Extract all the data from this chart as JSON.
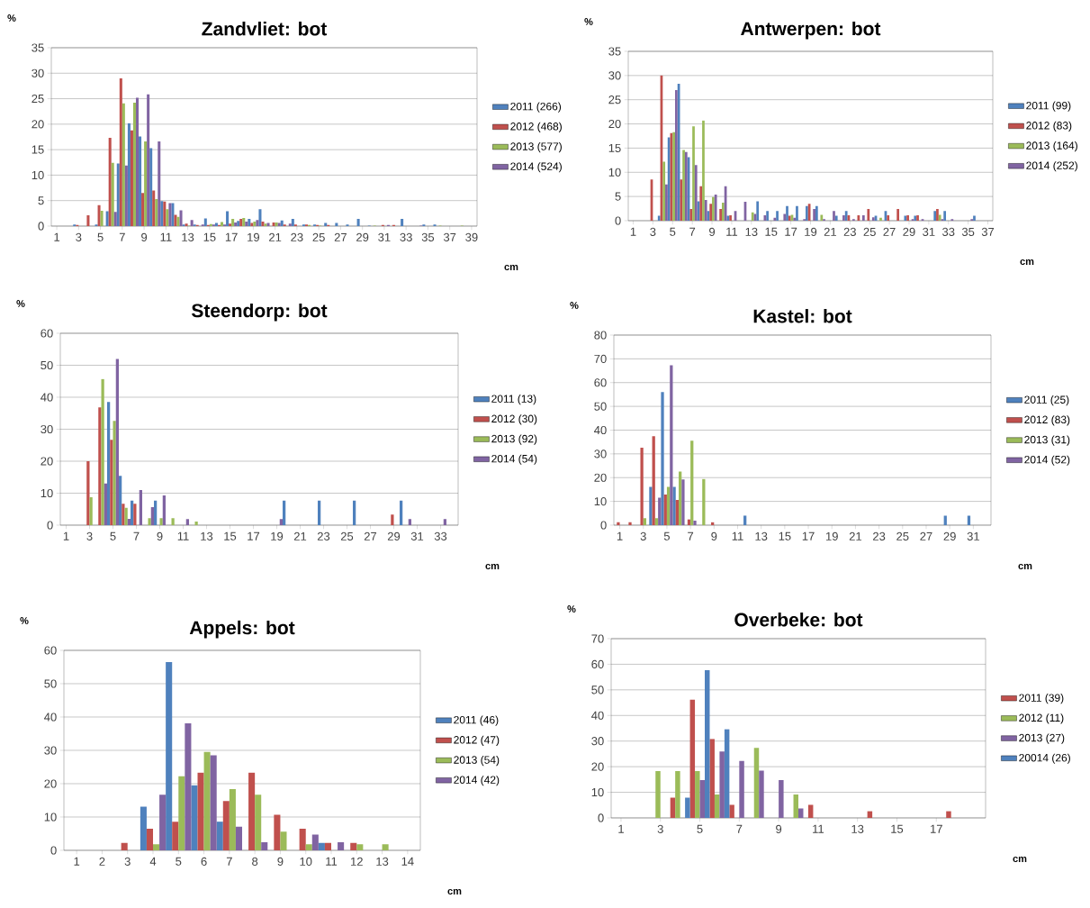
{
  "chart_data": [
    {
      "type": "bar",
      "title": "Zandvliet: bot",
      "xlabel": "cm",
      "ylabel": "%",
      "categories": [
        "1",
        null,
        "3",
        null,
        "5",
        null,
        "7",
        null,
        "9",
        null,
        "11",
        null,
        "13",
        null,
        "15",
        null,
        "17",
        null,
        "19",
        null,
        "21",
        null,
        "23",
        null,
        "25",
        null,
        "27",
        null,
        "29",
        null,
        "31",
        null,
        "33",
        null,
        "35",
        null,
        "37",
        null,
        "39"
      ],
      "ylim": [
        0,
        35
      ],
      "yticks": [
        0,
        5,
        10,
        15,
        20,
        25,
        30,
        35
      ],
      "grid": "y",
      "legend": "right",
      "series": [
        {
          "name": "2011 (266)",
          "color": "#4f81bd",
          "values": [
            0,
            0,
            0.3,
            0,
            0.3,
            2.9,
            12.3,
            20.2,
            17.6,
            15.3,
            4.9,
            4.5,
            0.3,
            0.3,
            1.5,
            0.6,
            2.9,
            1.0,
            1.4,
            3.3,
            0,
            1.1,
            1.4,
            0.3,
            0.3,
            0.6,
            0.6,
            0.3,
            1.4,
            0.1,
            0,
            0,
            1.4,
            0,
            0.3,
            0.3,
            0,
            0,
            0
          ]
        },
        {
          "name": "2012 (468)",
          "color": "#c0504d",
          "values": [
            0,
            0,
            0.2,
            2.1,
            4.1,
            17.3,
            29.0,
            18.8,
            6.5,
            7.0,
            4.8,
            2.2,
            0.5,
            0.2,
            0.2,
            0.2,
            0.5,
            1.4,
            0.6,
            0.9,
            0.7,
            0.3,
            0.3,
            0.3,
            0.2,
            0.2,
            0,
            0,
            0,
            0,
            0.2,
            0.2,
            0,
            0,
            0,
            0,
            0,
            0,
            0
          ]
        },
        {
          "name": "2013 (577)",
          "color": "#9bbb59",
          "values": [
            0,
            0,
            0,
            0,
            3.0,
            12.4,
            24.1,
            24.2,
            16.6,
            5.3,
            3.3,
            1.8,
            0.1,
            0,
            0.4,
            0.8,
            1.4,
            1.6,
            0.9,
            0.5,
            0.7,
            0,
            0,
            0.2,
            0.1,
            0,
            0,
            0,
            0,
            0.1,
            0,
            0,
            0,
            0,
            0,
            0.1,
            0,
            0.1,
            0
          ]
        },
        {
          "name": "2014 (524)",
          "color": "#8064a2",
          "values": [
            0,
            0,
            0,
            0,
            0,
            2.8,
            11.9,
            25.2,
            25.9,
            16.6,
            4.5,
            3.1,
            1.2,
            0.3,
            0.3,
            0.3,
            0.7,
            0.9,
            1.2,
            0.6,
            0.6,
            0.5,
            0,
            0,
            0,
            0,
            0,
            0,
            0,
            0,
            0.2,
            0,
            0,
            0.1,
            0,
            0,
            0,
            0,
            0
          ]
        }
      ]
    },
    {
      "type": "bar",
      "title": "Antwerpen: bot",
      "xlabel": "cm",
      "ylabel": "%",
      "categories": [
        "1",
        null,
        "3",
        null,
        "5",
        null,
        "7",
        null,
        "9",
        null,
        "11",
        null,
        "13",
        null,
        "15",
        null,
        "17",
        null,
        "19",
        null,
        "21",
        null,
        "23",
        null,
        "25",
        null,
        "27",
        null,
        "29",
        null,
        "31",
        null,
        "33",
        null,
        "35",
        null,
        "37"
      ],
      "ylim": [
        0,
        35
      ],
      "yticks": [
        0,
        5,
        10,
        15,
        20,
        25,
        30,
        35
      ],
      "grid": "y",
      "legend": "right",
      "series": [
        {
          "name": "2011 (99)",
          "color": "#4f81bd",
          "values": [
            0,
            0,
            0,
            1.0,
            17.2,
            28.3,
            13.1,
            4.0,
            2.0,
            0,
            1.0,
            0,
            0,
            4.0,
            2.0,
            2.0,
            3.0,
            3.0,
            3.0,
            3.0,
            0,
            1.0,
            2.0,
            0,
            0,
            1.0,
            2.0,
            0,
            1.0,
            1.0,
            0,
            2.0,
            2.0,
            0,
            0,
            1.0,
            0
          ]
        },
        {
          "name": "2012 (83)",
          "color": "#c0504d",
          "values": [
            0,
            0,
            8.5,
            30.0,
            18.1,
            8.5,
            2.4,
            7.1,
            3.5,
            2.4,
            1.1,
            0,
            0,
            0,
            0,
            0,
            1.0,
            0,
            3.5,
            0,
            0,
            0,
            1.1,
            1.1,
            2.4,
            0,
            1.1,
            2.4,
            1.1,
            1.1,
            0,
            2.4,
            0,
            0,
            0,
            0,
            0
          ]
        },
        {
          "name": "2013 (164)",
          "color": "#9bbb59",
          "values": [
            0,
            0,
            0,
            12.2,
            18.3,
            14.6,
            19.5,
            20.7,
            4.9,
            3.7,
            0,
            0,
            1.7,
            0,
            0,
            0,
            1.2,
            0,
            0,
            1.2,
            0,
            0,
            0,
            0,
            0,
            0.6,
            0,
            0,
            0,
            0,
            0,
            1.2,
            0,
            0,
            0,
            0,
            0
          ]
        },
        {
          "name": "2014 (252)",
          "color": "#8064a2",
          "values": [
            0,
            0,
            0,
            7.5,
            27.0,
            14.2,
            11.5,
            4.3,
            5.4,
            7.1,
            2.0,
            3.9,
            1.4,
            1.1,
            0.6,
            1.4,
            0.6,
            0.3,
            2.4,
            0.3,
            2.0,
            1.1,
            0.3,
            1.1,
            0.7,
            0,
            0,
            0,
            0.3,
            0.3,
            0,
            0.3,
            0.3,
            0,
            0.3,
            0,
            0
          ]
        }
      ]
    },
    {
      "type": "bar",
      "title": "Steendorp: bot",
      "xlabel": "cm",
      "ylabel": "%",
      "categories": [
        "1",
        null,
        "3",
        null,
        "5",
        null,
        "7",
        null,
        "9",
        null,
        "11",
        null,
        "13",
        null,
        "15",
        null,
        "17",
        null,
        "19",
        null,
        "21",
        null,
        "23",
        null,
        "25",
        null,
        "27",
        null,
        "29",
        null,
        "31",
        null,
        "33",
        null
      ],
      "ylim": [
        0,
        60
      ],
      "yticks": [
        0,
        10,
        20,
        30,
        40,
        50,
        60
      ],
      "grid": "y",
      "legend": "right",
      "series": [
        {
          "name": "2011 (13)",
          "color": "#4f81bd",
          "values": [
            0,
            0,
            0,
            0,
            38.5,
            15.4,
            7.7,
            0,
            7.7,
            0,
            0,
            0,
            0,
            0,
            0,
            0,
            0,
            0,
            0,
            7.7,
            0,
            0,
            7.7,
            0,
            0,
            7.7,
            0,
            0,
            0,
            7.7,
            0,
            0,
            0,
            0
          ]
        },
        {
          "name": "2012 (30)",
          "color": "#c0504d",
          "values": [
            0,
            0,
            20.0,
            36.8,
            26.7,
            6.7,
            6.7,
            0,
            0,
            0,
            0,
            0,
            0,
            0,
            0,
            0,
            0,
            0,
            0,
            0,
            0,
            0,
            0,
            0,
            0,
            0,
            0,
            0,
            3.3,
            0,
            0,
            0,
            0,
            0
          ]
        },
        {
          "name": "2013 (92)",
          "color": "#9bbb59",
          "values": [
            0,
            0,
            8.7,
            45.7,
            32.6,
            5.4,
            0,
            2.2,
            2.2,
            2.2,
            0,
            1.1,
            0,
            0,
            0,
            0,
            0,
            0,
            0,
            0,
            0,
            0,
            0,
            0,
            0,
            0,
            0,
            0,
            0,
            0,
            0,
            0,
            0,
            0
          ]
        },
        {
          "name": "2014 (54)",
          "color": "#8064a2",
          "values": [
            0,
            0,
            0,
            13.0,
            52.0,
            2.0,
            11.0,
            5.6,
            9.3,
            0,
            1.9,
            0,
            0,
            0,
            0,
            0,
            0,
            0,
            1.9,
            0,
            0,
            0,
            0,
            0,
            0,
            0,
            0,
            0,
            0,
            1.9,
            0,
            0,
            1.9,
            0
          ]
        }
      ]
    },
    {
      "type": "bar",
      "title": "Kastel: bot",
      "xlabel": "cm",
      "ylabel": "%",
      "categories": [
        "1",
        null,
        "3",
        null,
        "5",
        null,
        "7",
        null,
        "9",
        null,
        "11",
        null,
        "13",
        null,
        "15",
        null,
        "17",
        null,
        "19",
        null,
        "21",
        null,
        "23",
        null,
        "25",
        null,
        "27",
        null,
        "29",
        null,
        "31",
        null
      ],
      "ylim": [
        0,
        80
      ],
      "yticks": [
        0,
        10,
        20,
        30,
        40,
        50,
        60,
        70,
        80
      ],
      "grid": "y",
      "legend": "right",
      "series": [
        {
          "name": "2011 (25)",
          "color": "#4f81bd",
          "values": [
            0,
            0,
            0,
            16.1,
            56.0,
            16.1,
            0,
            0,
            0,
            0,
            0,
            4.0,
            0,
            0,
            0,
            0,
            0,
            0,
            0,
            0,
            0,
            0,
            0,
            0,
            0,
            0,
            0,
            0,
            4.0,
            0,
            4.0,
            0
          ]
        },
        {
          "name": "2012 (83)",
          "color": "#c0504d",
          "values": [
            1.2,
            1.2,
            32.6,
            37.4,
            12.9,
            10.6,
            2.4,
            0,
            1.2,
            0,
            0,
            0,
            0,
            0,
            0,
            0,
            0,
            0,
            0,
            0,
            0,
            0,
            0,
            0,
            0,
            0,
            0,
            0,
            0,
            0,
            0,
            0
          ]
        },
        {
          "name": "2013 (31)",
          "color": "#9bbb59",
          "values": [
            0,
            0,
            2.9,
            2.9,
            16.1,
            22.6,
            35.5,
            19.4,
            0,
            0,
            0,
            0,
            0,
            0,
            0,
            0,
            0,
            0,
            0,
            0,
            0,
            0,
            0,
            0,
            0,
            0,
            0,
            0,
            0,
            0,
            0,
            0
          ]
        },
        {
          "name": "2014 (52)",
          "color": "#8064a2",
          "values": [
            0,
            0,
            0,
            11.6,
            67.3,
            19.2,
            1.9,
            0,
            0,
            0,
            0,
            0,
            0,
            0,
            0,
            0,
            0,
            0,
            0,
            0,
            0,
            0,
            0,
            0,
            0,
            0,
            0,
            0,
            0,
            0,
            0,
            0
          ]
        }
      ]
    },
    {
      "type": "bar",
      "title": "Appels: bot",
      "xlabel": "cm",
      "ylabel": "%",
      "categories": [
        "1",
        "2",
        "3",
        "4",
        "5",
        "6",
        "7",
        "8",
        "9",
        "10",
        "11",
        "12",
        "13",
        "14"
      ],
      "ylim": [
        0,
        60
      ],
      "yticks": [
        0,
        10,
        20,
        30,
        40,
        50,
        60
      ],
      "grid": "y",
      "legend": "right",
      "series": [
        {
          "name": "2011 (46)",
          "color": "#4f81bd",
          "values": [
            0,
            0,
            0,
            13.1,
            56.5,
            19.5,
            8.6,
            0,
            0,
            0,
            2.2,
            0,
            0,
            0
          ]
        },
        {
          "name": "2012 (47)",
          "color": "#c0504d",
          "values": [
            0,
            0,
            2.2,
            6.5,
            8.6,
            23.3,
            14.8,
            23.3,
            10.7,
            6.5,
            2.2,
            2.2,
            0,
            0
          ]
        },
        {
          "name": "2013 (54)",
          "color": "#9bbb59",
          "values": [
            0,
            0,
            0,
            1.8,
            22.2,
            29.5,
            18.4,
            16.7,
            5.6,
            1.8,
            0,
            1.8,
            1.8,
            0
          ]
        },
        {
          "name": "2014 (42)",
          "color": "#8064a2",
          "values": [
            0,
            0,
            0,
            16.7,
            38.1,
            28.5,
            7.1,
            2.4,
            0,
            4.7,
            2.4,
            0,
            0,
            0
          ]
        }
      ]
    },
    {
      "type": "bar",
      "title": "Overbeke: bot",
      "xlabel": "cm",
      "ylabel": "%",
      "categories": [
        "1",
        null,
        "3",
        null,
        "5",
        null,
        "7",
        null,
        "9",
        null,
        "11",
        null,
        "13",
        null,
        "15",
        null,
        "17",
        null,
        null
      ],
      "ylim": [
        0,
        70
      ],
      "yticks": [
        0,
        10,
        20,
        30,
        40,
        50,
        60,
        70
      ],
      "grid": "y",
      "legend": "right",
      "series": [
        {
          "name": "2011 (39)",
          "color": "#c0504d",
          "values": [
            0,
            0,
            0,
            7.9,
            46.2,
            30.8,
            5.1,
            0,
            0,
            0,
            5.1,
            0,
            0,
            2.6,
            0,
            0,
            0,
            2.6,
            0
          ]
        },
        {
          "name": "2012 (11)",
          "color": "#9bbb59",
          "values": [
            0,
            0,
            18.3,
            18.3,
            18.3,
            9.1,
            0,
            27.3,
            0,
            9.1,
            0,
            0,
            0,
            0,
            0,
            0,
            0,
            0,
            0
          ]
        },
        {
          "name": "2013 (27)",
          "color": "#8064a2",
          "values": [
            0,
            0,
            0,
            0,
            14.8,
            25.9,
            22.2,
            18.5,
            14.8,
            3.7,
            0,
            0,
            0,
            0,
            0,
            0,
            0,
            0,
            0
          ]
        },
        {
          "name": "20014 (26)",
          "color": "#4f81bd",
          "values": [
            0,
            0,
            0,
            7.9,
            57.7,
            34.6,
            0,
            0,
            0,
            0,
            0,
            0,
            0,
            0,
            0,
            0,
            0,
            0,
            0
          ]
        }
      ]
    }
  ]
}
